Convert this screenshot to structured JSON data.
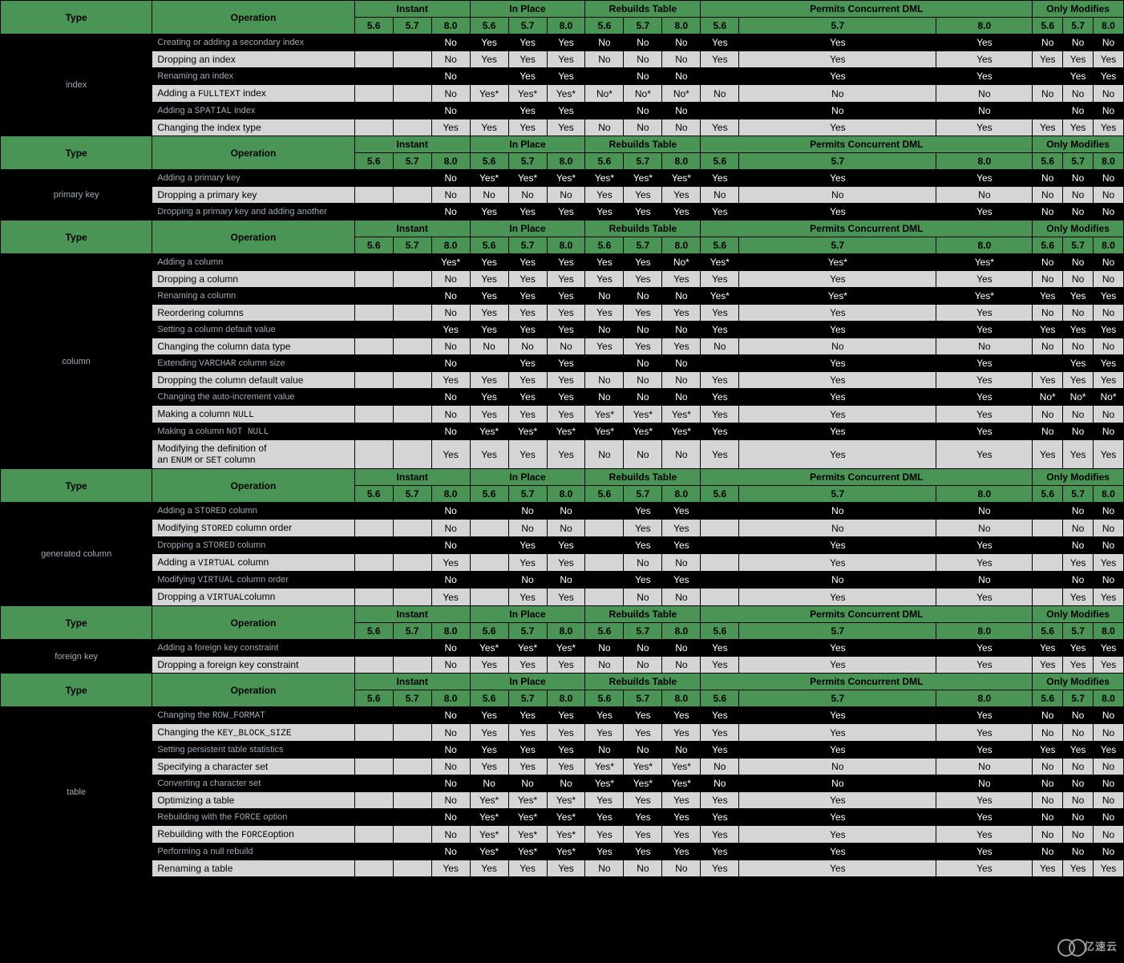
{
  "style": {
    "header_bg": "#4a9556",
    "light_bg": "#d5d5d5",
    "black_bg": "#000000",
    "col_widths": {
      "type": 150,
      "operation": 200,
      "sub": 38,
      "wide57": 195,
      "wide80": 95,
      "last": 30
    }
  },
  "group_headers": {
    "type": "Type",
    "operation": "Operation",
    "instant": "Instant",
    "inplace": "In Place",
    "rebuilds": "Rebuilds Table",
    "permits": "Permits Concurrent DML",
    "only": "Only Modifies"
  },
  "versions": {
    "v56": "5.6",
    "v57": "5.7",
    "v80": "8.0"
  },
  "sections": [
    {
      "type_label": "index",
      "rows": [
        {
          "dark": true,
          "op": "Creating or adding a secondary index",
          "cells": [
            "",
            "",
            "No",
            "Yes",
            "Yes",
            "Yes",
            "No",
            "No",
            "No",
            "Yes",
            "Yes",
            "Yes",
            "No",
            "No",
            "No"
          ]
        },
        {
          "dark": false,
          "op": "Dropping an index",
          "cells": [
            "",
            "",
            "No",
            "Yes",
            "Yes",
            "Yes",
            "No",
            "No",
            "No",
            "Yes",
            "Yes",
            "Yes",
            "Yes",
            "Yes",
            "Yes"
          ]
        },
        {
          "dark": true,
          "op": "Renaming an index",
          "cells": [
            "",
            "",
            "No",
            "",
            "Yes",
            "Yes",
            "",
            "No",
            "No",
            "",
            "Yes",
            "Yes",
            "",
            "Yes",
            "Yes"
          ]
        },
        {
          "dark": false,
          "op_html": "Adding a <span class='mono'>FULLTEXT</span> index",
          "cells": [
            "",
            "",
            "No",
            "Yes*",
            "Yes*",
            "Yes*",
            "No*",
            "No*",
            "No*",
            "No",
            "No",
            "No",
            "No",
            "No",
            "No"
          ]
        },
        {
          "dark": true,
          "op_html": "Adding a <span class='mono'>SPATIAL</span> index",
          "cells": [
            "",
            "",
            "No",
            "",
            "Yes",
            "Yes",
            "",
            "No",
            "No",
            "",
            "No",
            "No",
            "",
            "No",
            "No"
          ]
        },
        {
          "dark": false,
          "op": "Changing the index type",
          "cells": [
            "",
            "",
            "Yes",
            "Yes",
            "Yes",
            "Yes",
            "No",
            "No",
            "No",
            "Yes",
            "Yes",
            "Yes",
            "Yes",
            "Yes",
            "Yes"
          ]
        }
      ],
      "trailing_header": true
    },
    {
      "type_label": "primary key",
      "rows": [
        {
          "dark": true,
          "op": "Adding a primary key",
          "cells": [
            "",
            "",
            "No",
            "Yes*",
            "Yes*",
            "Yes*",
            "Yes*",
            "Yes*",
            "Yes*",
            "Yes",
            "Yes",
            "Yes",
            "No",
            "No",
            "No"
          ]
        },
        {
          "dark": false,
          "op": "Dropping a primary key",
          "cells": [
            "",
            "",
            "No",
            "No",
            "No",
            "No",
            "Yes",
            "Yes",
            "Yes",
            "No",
            "No",
            "No",
            "No",
            "No",
            "No"
          ]
        },
        {
          "dark": true,
          "op": "Dropping a primary key and adding another",
          "cells": [
            "",
            "",
            "No",
            "Yes",
            "Yes",
            "Yes",
            "Yes",
            "Yes",
            "Yes",
            "Yes",
            "Yes",
            "Yes",
            "No",
            "No",
            "No"
          ]
        }
      ],
      "trailing_header": true
    },
    {
      "type_label": "column",
      "rows": [
        {
          "dark": true,
          "op": "Adding a column",
          "cells": [
            "",
            "",
            "Yes*",
            "Yes",
            "Yes",
            "Yes",
            "Yes",
            "Yes",
            "No*",
            "Yes*",
            "Yes*",
            "Yes*",
            "No",
            "No",
            "No"
          ]
        },
        {
          "dark": false,
          "op": "Dropping a column",
          "cells": [
            "",
            "",
            "No",
            "Yes",
            "Yes",
            "Yes",
            "Yes",
            "Yes",
            "Yes",
            "Yes",
            "Yes",
            "Yes",
            "No",
            "No",
            "No"
          ]
        },
        {
          "dark": true,
          "op": "Renaming a column",
          "cells": [
            "",
            "",
            "No",
            "Yes",
            "Yes",
            "Yes",
            "No",
            "No",
            "No",
            "Yes*",
            "Yes*",
            "Yes*",
            "Yes",
            "Yes",
            "Yes"
          ]
        },
        {
          "dark": false,
          "op": "Reordering columns",
          "cells": [
            "",
            "",
            "No",
            "Yes",
            "Yes",
            "Yes",
            "Yes",
            "Yes",
            "Yes",
            "Yes",
            "Yes",
            "Yes",
            "No",
            "No",
            "No"
          ]
        },
        {
          "dark": true,
          "op": "Setting a column default value",
          "cells": [
            "",
            "",
            "Yes",
            "Yes",
            "Yes",
            "Yes",
            "No",
            "No",
            "No",
            "Yes",
            "Yes",
            "Yes",
            "Yes",
            "Yes",
            "Yes"
          ]
        },
        {
          "dark": false,
          "op": "Changing the column data type",
          "cells": [
            "",
            "",
            "No",
            "No",
            "No",
            "No",
            "Yes",
            "Yes",
            "Yes",
            "No",
            "No",
            "No",
            "No",
            "No",
            "No"
          ]
        },
        {
          "dark": true,
          "op_html": "Extending <span class='mono'>VARCHAR</span> column size",
          "cells": [
            "",
            "",
            "No",
            "",
            "Yes",
            "Yes",
            "",
            "No",
            "No",
            "",
            "Yes",
            "Yes",
            "",
            "Yes",
            "Yes"
          ]
        },
        {
          "dark": false,
          "op": "Dropping the column default value",
          "cells": [
            "",
            "",
            "Yes",
            "Yes",
            "Yes",
            "Yes",
            "No",
            "No",
            "No",
            "Yes",
            "Yes",
            "Yes",
            "Yes",
            "Yes",
            "Yes"
          ]
        },
        {
          "dark": true,
          "op": "Changing the auto-increment value",
          "cells": [
            "",
            "",
            "No",
            "Yes",
            "Yes",
            "Yes",
            "No",
            "No",
            "No",
            "Yes",
            "Yes",
            "Yes",
            "No*",
            "No*",
            "No*"
          ]
        },
        {
          "dark": false,
          "op_html": "Making a column <span class='mono'>NULL</span>",
          "cells": [
            "",
            "",
            "No",
            "Yes",
            "Yes",
            "Yes",
            "Yes*",
            "Yes*",
            "Yes*",
            "Yes",
            "Yes",
            "Yes",
            "No",
            "No",
            "No"
          ]
        },
        {
          "dark": true,
          "op_html": "Making a column <span class='mono'>NOT NULL</span>",
          "cells": [
            "",
            "",
            "No",
            "Yes*",
            "Yes*",
            "Yes*",
            "Yes*",
            "Yes*",
            "Yes*",
            "Yes",
            "Yes",
            "Yes",
            "No",
            "No",
            "No"
          ]
        },
        {
          "dark": false,
          "op_html": "Modifying the definition of<br>an <span class='mono'>ENUM</span> or <span class='mono'>SET</span> column",
          "cells": [
            "",
            "",
            "Yes",
            "Yes",
            "Yes",
            "Yes",
            "No",
            "No",
            "No",
            "Yes",
            "Yes",
            "Yes",
            "Yes",
            "Yes",
            "Yes"
          ]
        }
      ],
      "trailing_header": true
    },
    {
      "type_label": "generated column",
      "rows": [
        {
          "dark": true,
          "op_html": "Adding a <span class='mono'>STORED</span> column",
          "cells": [
            "",
            "",
            "No",
            "",
            "No",
            "No",
            "",
            "Yes",
            "Yes",
            "",
            "No",
            "No",
            "",
            "No",
            "No"
          ]
        },
        {
          "dark": false,
          "op_html": "Modifying <span class='mono'>STORED</span> column order",
          "cells": [
            "",
            "",
            "No",
            "",
            "No",
            "No",
            "",
            "Yes",
            "Yes",
            "",
            "No",
            "No",
            "",
            "No",
            "No"
          ]
        },
        {
          "dark": true,
          "op_html": "Dropping a <span class='mono'>STORED</span> column",
          "cells": [
            "",
            "",
            "No",
            "",
            "Yes",
            "Yes",
            "",
            "Yes",
            "Yes",
            "",
            "Yes",
            "Yes",
            "",
            "No",
            "No"
          ]
        },
        {
          "dark": false,
          "op_html": "Adding a <span class='mono'>VIRTUAL</span> column",
          "cells": [
            "",
            "",
            "Yes",
            "",
            "Yes",
            "Yes",
            "",
            "No",
            "No",
            "",
            "Yes",
            "Yes",
            "",
            "Yes",
            "Yes"
          ]
        },
        {
          "dark": true,
          "op_html": "Modifying <span class='mono'>VIRTUAL</span> column order",
          "cells": [
            "",
            "",
            "No",
            "",
            "No",
            "No",
            "",
            "Yes",
            "Yes",
            "",
            "No",
            "No",
            "",
            "No",
            "No"
          ]
        },
        {
          "dark": false,
          "op_html": "Dropping a <span class='mono'>VIRTUAL</span>column",
          "cells": [
            "",
            "",
            "Yes",
            "",
            "Yes",
            "Yes",
            "",
            "No",
            "No",
            "",
            "Yes",
            "Yes",
            "",
            "Yes",
            "Yes"
          ]
        }
      ],
      "trailing_header": true
    },
    {
      "type_label": "foreign key",
      "rows": [
        {
          "dark": true,
          "op": "Adding a foreign key constraint",
          "cells": [
            "",
            "",
            "No",
            "Yes*",
            "Yes*",
            "Yes*",
            "No",
            "No",
            "No",
            "Yes",
            "Yes",
            "Yes",
            "Yes",
            "Yes",
            "Yes"
          ]
        },
        {
          "dark": false,
          "op": "Dropping a foreign key constraint",
          "cells": [
            "",
            "",
            "No",
            "Yes",
            "Yes",
            "Yes",
            "No",
            "No",
            "No",
            "Yes",
            "Yes",
            "Yes",
            "Yes",
            "Yes",
            "Yes"
          ]
        }
      ],
      "trailing_header": true
    },
    {
      "type_label": "table",
      "rows": [
        {
          "dark": true,
          "op_html": "Changing the <span class='mono'>ROW_FORMAT</span>",
          "cells": [
            "",
            "",
            "No",
            "Yes",
            "Yes",
            "Yes",
            "Yes",
            "Yes",
            "Yes",
            "Yes",
            "Yes",
            "Yes",
            "No",
            "No",
            "No"
          ]
        },
        {
          "dark": false,
          "op_html": "Changing the <span class='mono'>KEY_BLOCK_SIZE</span>",
          "cells": [
            "",
            "",
            "No",
            "Yes",
            "Yes",
            "Yes",
            "Yes",
            "Yes",
            "Yes",
            "Yes",
            "Yes",
            "Yes",
            "No",
            "No",
            "No"
          ]
        },
        {
          "dark": true,
          "op": "Setting persistent table statistics",
          "cells": [
            "",
            "",
            "No",
            "Yes",
            "Yes",
            "Yes",
            "No",
            "No",
            "No",
            "Yes",
            "Yes",
            "Yes",
            "Yes",
            "Yes",
            "Yes"
          ]
        },
        {
          "dark": false,
          "op": "Specifying a character set",
          "cells": [
            "",
            "",
            "No",
            "Yes",
            "Yes",
            "Yes",
            "Yes*",
            "Yes*",
            "Yes*",
            "No",
            "No",
            "No",
            "No",
            "No",
            "No"
          ]
        },
        {
          "dark": true,
          "op": "Converting a character set",
          "cells": [
            "",
            "",
            "No",
            "No",
            "No",
            "No",
            "Yes*",
            "Yes*",
            "Yes*",
            "No",
            "No",
            "No",
            "No",
            "No",
            "No"
          ]
        },
        {
          "dark": false,
          "op": "Optimizing a table",
          "cells": [
            "",
            "",
            "No",
            "Yes*",
            "Yes*",
            "Yes*",
            "Yes",
            "Yes",
            "Yes",
            "Yes",
            "Yes",
            "Yes",
            "No",
            "No",
            "No"
          ]
        },
        {
          "dark": true,
          "op_html": "Rebuilding with the <span class='mono'>FORCE</span> option",
          "cells": [
            "",
            "",
            "No",
            "Yes*",
            "Yes*",
            "Yes*",
            "Yes",
            "Yes",
            "Yes",
            "Yes",
            "Yes",
            "Yes",
            "No",
            "No",
            "No"
          ]
        },
        {
          "dark": false,
          "op_html": "Rebuilding with the <span class='mono'>FORCE</span>option",
          "cells": [
            "",
            "",
            "No",
            "Yes*",
            "Yes*",
            "Yes*",
            "Yes",
            "Yes",
            "Yes",
            "Yes",
            "Yes",
            "Yes",
            "No",
            "No",
            "No"
          ]
        },
        {
          "dark": true,
          "op": "Performing a null rebuild",
          "cells": [
            "",
            "",
            "No",
            "Yes*",
            "Yes*",
            "Yes*",
            "Yes",
            "Yes",
            "Yes",
            "Yes",
            "Yes",
            "Yes",
            "No",
            "No",
            "No"
          ]
        },
        {
          "dark": false,
          "op": "Renaming a table",
          "cells": [
            "",
            "",
            "Yes",
            "Yes",
            "Yes",
            "Yes",
            "No",
            "No",
            "No",
            "Yes",
            "Yes",
            "Yes",
            "Yes",
            "Yes",
            "Yes"
          ]
        }
      ],
      "trailing_header": false
    }
  ],
  "watermark": "亿速云"
}
